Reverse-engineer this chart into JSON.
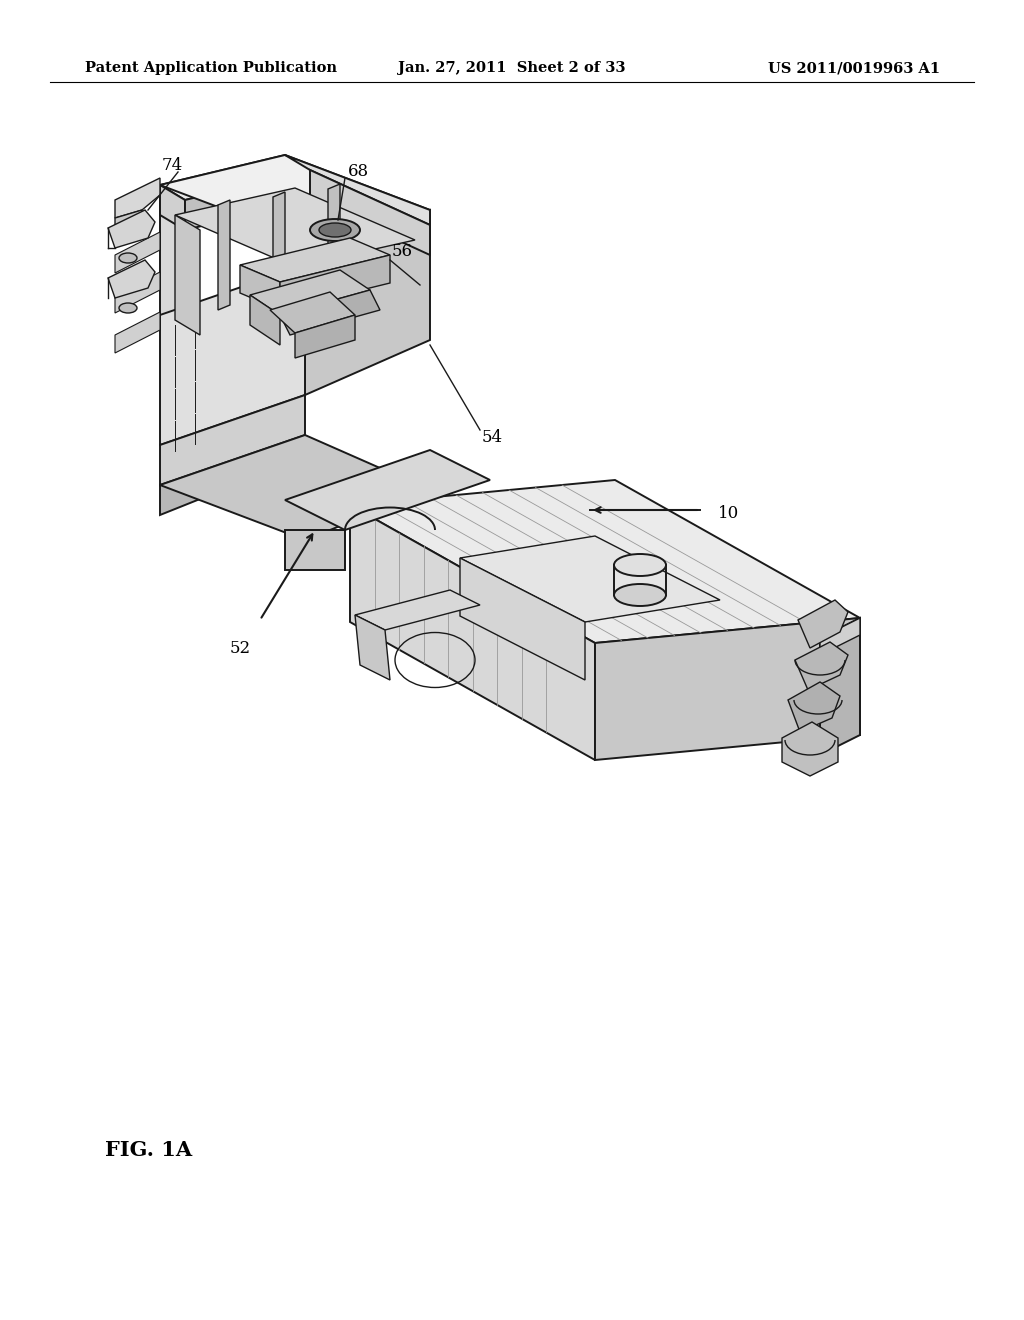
{
  "background_color": "#ffffff",
  "header_left": "Patent Application Publication",
  "header_center": "Jan. 27, 2011  Sheet 2 of 33",
  "header_right": "US 2011/0019963 A1",
  "fig_label": "FIG. 1A",
  "header_fontsize": 10.5,
  "label_fontsize": 12,
  "fig_label_fontsize": 15,
  "line_color": "#1a1a1a",
  "lw": 1.0,
  "lw_thick": 1.4
}
